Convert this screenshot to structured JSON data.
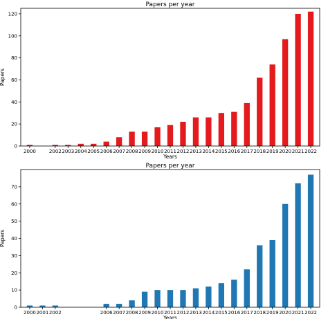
{
  "chart_data": [
    {
      "type": "bar",
      "title": "Papers per year",
      "xlabel": "Years",
      "ylabel": "Papers",
      "color": "#e41a1c",
      "ylim": [
        0,
        125
      ],
      "yticks": [
        0,
        20,
        40,
        60,
        80,
        100,
        120
      ],
      "x": [
        2000,
        2002,
        2003,
        2004,
        2005,
        2006,
        2007,
        2008,
        2009,
        2010,
        2011,
        2012,
        2013,
        2014,
        2015,
        2016,
        2017,
        2018,
        2019,
        2020,
        2021,
        2022
      ],
      "values": [
        1,
        1,
        1,
        2,
        2,
        4,
        8,
        13,
        13,
        17,
        19,
        22,
        26,
        26,
        30,
        31,
        39,
        62,
        74,
        97,
        120,
        122
      ],
      "xlim": [
        1999.3,
        2022.7
      ],
      "grid": false
    },
    {
      "type": "bar",
      "title": "Papers per year",
      "xlabel": "Years",
      "ylabel": "Papers",
      "color": "#1f77b4",
      "ylim": [
        0,
        80
      ],
      "yticks": [
        0,
        10,
        20,
        30,
        40,
        50,
        60,
        70
      ],
      "x": [
        2000,
        2001,
        2002,
        2006,
        2007,
        2008,
        2009,
        2010,
        2011,
        2012,
        2013,
        2014,
        2015,
        2016,
        2017,
        2018,
        2019,
        2020,
        2021,
        2022
      ],
      "values": [
        1,
        1,
        1,
        2,
        2,
        4,
        9,
        10,
        10,
        10,
        11,
        12,
        14,
        16,
        22,
        36,
        39,
        60,
        72,
        77
      ],
      "xlim": [
        1999.3,
        2022.7
      ],
      "grid": false
    }
  ]
}
